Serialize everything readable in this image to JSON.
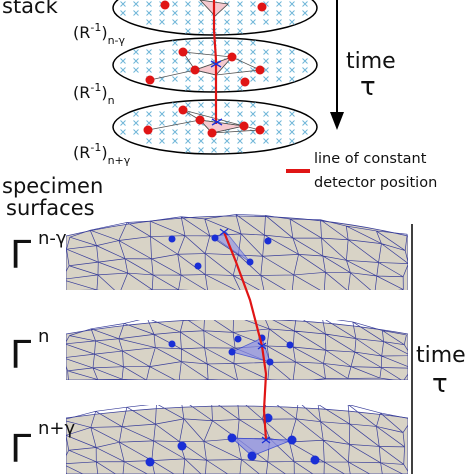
{
  "labels": {
    "stack": "stack",
    "recon_base": "(R",
    "recon_sup": "-1",
    "recon_close": ")",
    "sub_prev": "n-γ",
    "sub_cur": "n",
    "sub_next": "n+γ",
    "time_word": "time",
    "tau": "τ",
    "legend_text_1": "line of constant",
    "legend_text_2": "detector position",
    "specimen_1": "specimen",
    "specimen_2": "surfaces",
    "gamma": "Γ",
    "gamma_sup_prev": "n-γ",
    "gamma_sup_cur": "n",
    "gamma_sup_next": "n+γ"
  },
  "colors": {
    "trajectory": "#e01515",
    "node_red": "#e01515",
    "node_blue": "#1a2fd6",
    "mesh_line": "#3a3f9a",
    "surface_fill": "#d8d3c6",
    "cross": "#6fb6d8",
    "triangle_fill": "#f6c9cf",
    "triangle_fill_blue": "#8c8fe6",
    "ink": "#000000"
  }
}
